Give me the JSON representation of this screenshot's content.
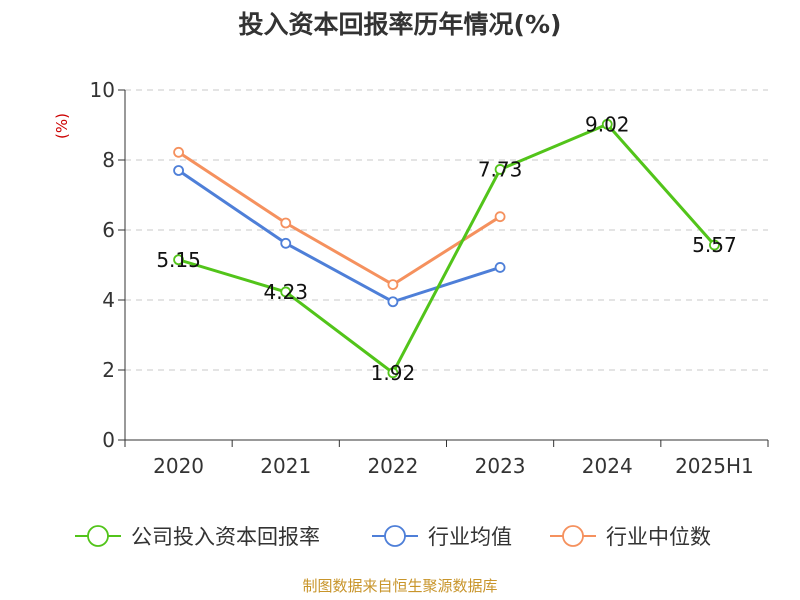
{
  "chart_data": {
    "type": "line",
    "title": "投入资本回报率历年情况(%)",
    "y_unit": "(%)",
    "categories": [
      "2020",
      "2021",
      "2022",
      "2023",
      "2024",
      "2025H1"
    ],
    "ylim": [
      0,
      10
    ],
    "y_ticks": [
      0,
      2,
      4,
      6,
      8,
      10
    ],
    "grid": true,
    "legend_position": "bottom",
    "series": [
      {
        "name": "公司投入资本回报率",
        "color": "#52c41a",
        "values": [
          5.15,
          4.23,
          1.92,
          7.73,
          9.02,
          5.57
        ],
        "labels": [
          "5.15",
          "4.23",
          "1.92",
          "7.73",
          "9.02",
          "5.57"
        ]
      },
      {
        "name": "行业均值",
        "color": "#4e7fd8",
        "values": [
          7.7,
          5.62,
          3.95,
          4.93,
          null,
          null
        ]
      },
      {
        "name": "行业中位数",
        "color": "#f5915e",
        "values": [
          8.22,
          6.2,
          4.44,
          6.38,
          null,
          null
        ]
      }
    ],
    "source": "制图数据来自恒生聚源数据库"
  }
}
